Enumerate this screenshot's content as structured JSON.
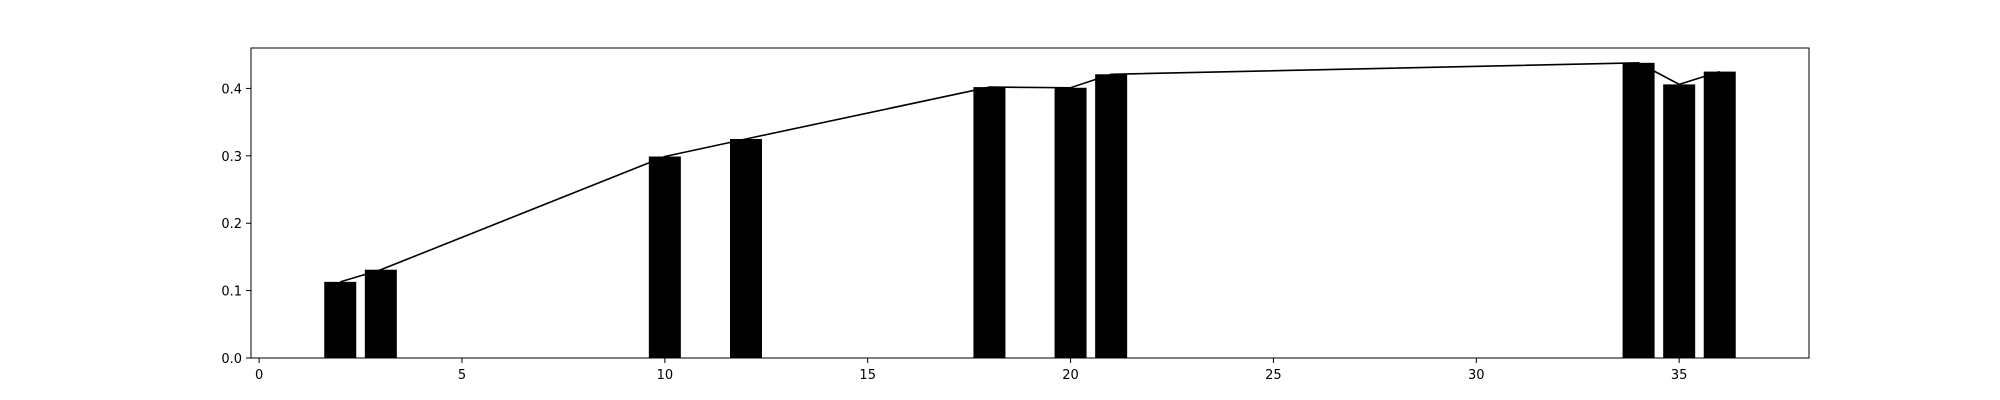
{
  "chart_data": {
    "type": "bar",
    "x": [
      2,
      3,
      10,
      12,
      18,
      20,
      21,
      34,
      35,
      36
    ],
    "values": [
      0.113,
      0.131,
      0.299,
      0.325,
      0.402,
      0.401,
      0.421,
      0.438,
      0.406,
      0.425
    ],
    "line_overlay": true,
    "title": "",
    "xlabel": "",
    "ylabel": "",
    "xlim": [
      -0.2,
      38.2
    ],
    "ylim": [
      0.0,
      0.46
    ],
    "xticks": [
      0,
      5,
      10,
      15,
      20,
      25,
      30,
      35
    ],
    "yticks": [
      0.0,
      0.1,
      0.2,
      0.3,
      0.4
    ],
    "grid": false,
    "colors": {
      "bars": "#000000",
      "line": "#000000",
      "axes": "#000000",
      "background": "#ffffff"
    }
  }
}
